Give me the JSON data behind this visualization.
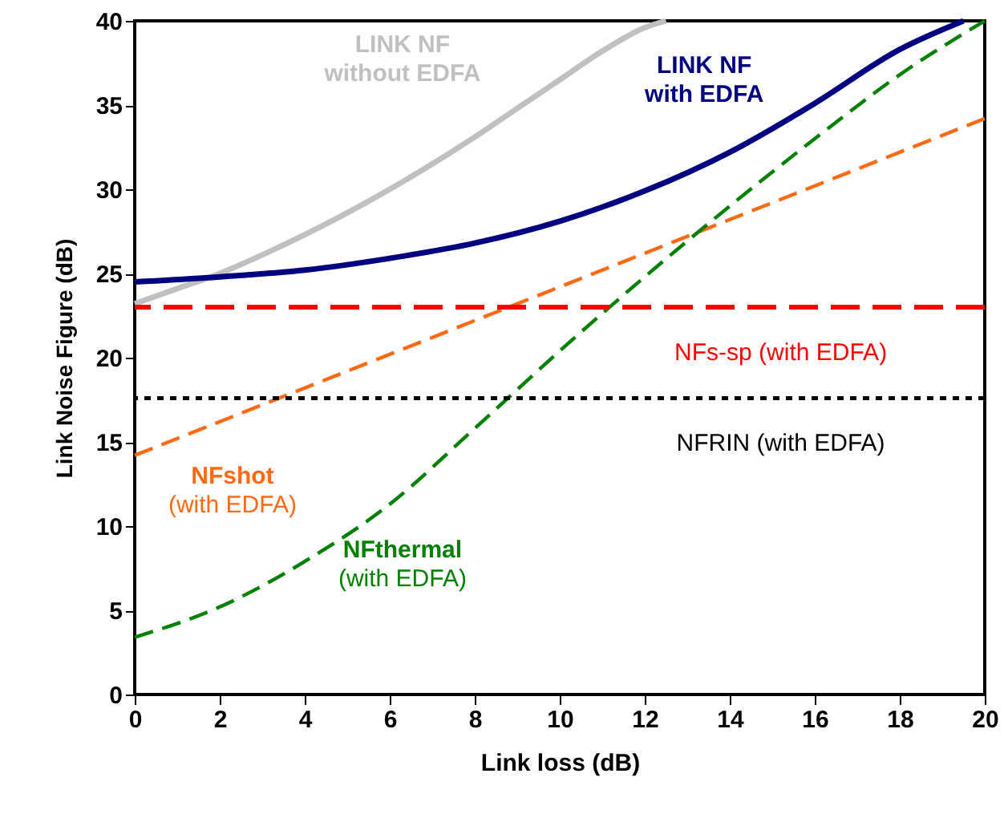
{
  "chart_data": {
    "type": "line",
    "xlabel": "Link loss (dB)",
    "ylabel": "Link Noise Figure (dB)",
    "xlim": [
      0,
      20
    ],
    "xticks": [
      0,
      2,
      4,
      6,
      8,
      10,
      12,
      14,
      16,
      18,
      20
    ],
    "ylim": [
      0,
      40
    ],
    "yticks": [
      0,
      5,
      10,
      15,
      20,
      25,
      30,
      35,
      40
    ],
    "grid": false,
    "legend": false,
    "marker": "none",
    "series": [
      {
        "name": "LINK NF\nwithout EDFA",
        "color": "#c0c0c0",
        "line_style": "solid",
        "x": [
          0,
          1,
          2,
          3,
          4,
          5,
          6,
          7,
          8,
          9,
          10,
          11,
          12,
          12.5
        ],
        "values": [
          23.2,
          24.1,
          25.0,
          26.1,
          27.3,
          28.6,
          30.0,
          31.5,
          33.1,
          34.8,
          36.5,
          38.2,
          39.6,
          40
        ]
      },
      {
        "name": "LINK NF\nwith EDFA",
        "color": "#000080",
        "line_style": "solid",
        "x": [
          0,
          2,
          4,
          6,
          8,
          10,
          12,
          14,
          16,
          18,
          19.5
        ],
        "values": [
          24.5,
          24.8,
          25.2,
          25.9,
          26.8,
          28.1,
          29.9,
          32.2,
          35.1,
          38.3,
          40
        ]
      },
      {
        "name": "NFshot\n(with EDFA)",
        "color": "#ff6a13",
        "line_style": "dashed",
        "x": [
          0,
          5,
          10,
          15,
          20
        ],
        "values": [
          14.2,
          19.2,
          24.2,
          29.2,
          34.2
        ]
      },
      {
        "name": "NFthermal\n(with EDFA)",
        "color": "#008000",
        "line_style": "dashed",
        "x": [
          0,
          2,
          4,
          6,
          8,
          10,
          12,
          14,
          16,
          18,
          20
        ],
        "values": [
          3.4,
          5.2,
          7.9,
          11.3,
          15.8,
          20.4,
          24.8,
          29.0,
          33.0,
          36.8,
          40
        ]
      }
    ],
    "ref_lines": [
      {
        "axis": "y",
        "value": 23,
        "label": "NFs-sp (with EDFA)",
        "color": "#ff0000",
        "line_style": "dashed"
      },
      {
        "axis": "y",
        "value": 17.6,
        "label": "NFRIN (with EDFA)",
        "color": "#000000",
        "line_style": "dotted"
      }
    ]
  }
}
